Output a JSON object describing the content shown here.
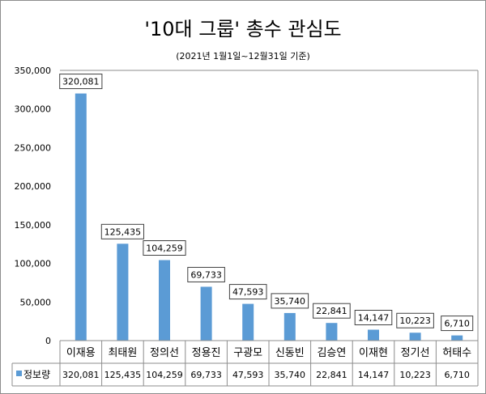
{
  "chart_data": {
    "type": "bar",
    "title": "'10대 그룹' 총수 관심도",
    "subtitle": "(2021년 1월1일~12월31일 기준)",
    "categories": [
      "이재용",
      "최태원",
      "정의선",
      "정용진",
      "구광모",
      "신동빈",
      "김승연",
      "이재현",
      "정기선",
      "허태수"
    ],
    "series": [
      {
        "name": "정보량",
        "values": [
          320081,
          125435,
          104259,
          69733,
          47593,
          35740,
          22841,
          14147,
          10223,
          6710
        ],
        "color": "#5b9bd5"
      }
    ],
    "value_labels": [
      "320,081",
      "125,435",
      "104,259",
      "69,733",
      "47,593",
      "35,740",
      "22,841",
      "14,147",
      "10,223",
      "6,710"
    ],
    "ylim": [
      0,
      350000
    ],
    "yticks": [
      0,
      50000,
      100000,
      150000,
      200000,
      250000,
      300000,
      350000
    ],
    "ytick_labels": [
      "0",
      "50,000",
      "100,000",
      "150,000",
      "200,000",
      "250,000",
      "300,000",
      "350,000"
    ],
    "grid": false,
    "legend": "data-table",
    "data_table": true
  }
}
